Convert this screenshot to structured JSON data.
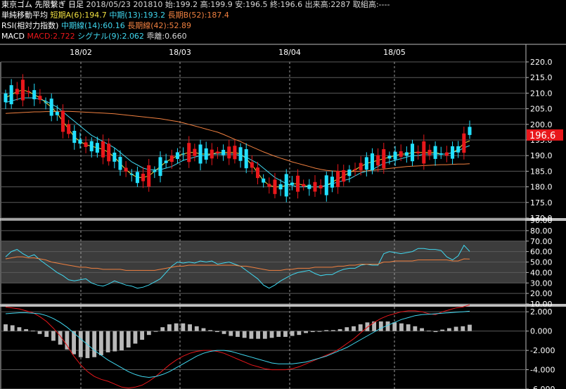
{
  "header": {
    "line1": {
      "title": "東京ゴム 先限繋ぎ 日足",
      "info": "2018/05/23 201810 始:199.2 高:199.9 安:196.5 終:196.6 出来高:2287 取組高:----"
    },
    "line2": {
      "name": "単純移動平均",
      "short": "短期A(6):194.7",
      "mid": "中期(13):193.2",
      "long": "長期B(52):187.4"
    },
    "line3": {
      "name": "RSI(相対力指数)",
      "mid": "中期線(14):60.16",
      "long": "長期線(42):52.89"
    },
    "line4": {
      "name": "MACD",
      "macd": "MACD:2.722",
      "signal": "シグナル(9):2.062",
      "diff": "乖離:0.660"
    }
  },
  "colors": {
    "up": "#e8171b",
    "down": "#22e0ff",
    "ma_short": "#f0e040",
    "ma_mid": "#40d8f0",
    "ma_long": "#f08040",
    "rsi_mid": "#40d8f0",
    "rsi_long": "#f08040",
    "macd": "#e8171b",
    "signal": "#40d8f0",
    "hist": "#b8b8b8",
    "price_tag": "#e8171b"
  },
  "current_price_label": "196.6",
  "chart_data": [
    {
      "type": "candlestick",
      "title": "",
      "x_labels": [
        "18/02",
        "18/03",
        "18/04",
        "18/05"
      ],
      "y_ticks": [
        "170.0",
        "175.0",
        "180.0",
        "185.0",
        "190.0",
        "195.0",
        "200.0",
        "205.0",
        "210.0",
        "215.0",
        "220.0"
      ],
      "ylim": [
        170,
        220
      ],
      "series": [
        {
          "name": "短期A(6)",
          "values": [
            208.5,
            209.5,
            210.5,
            211,
            210.5,
            209.5,
            208.5,
            207,
            205.5,
            203.5,
            201,
            198.5,
            196,
            194.5,
            193.5,
            193,
            192.5,
            192,
            191,
            189.5,
            187.5,
            185.5,
            184,
            183,
            183,
            183.5,
            185,
            186.5,
            188,
            189,
            190,
            190.5,
            191,
            191,
            190.5,
            190.5,
            190.5,
            191,
            191,
            191,
            191,
            190.5,
            189,
            187,
            184.5,
            182,
            180.5,
            180,
            180,
            180.5,
            181,
            181,
            180.5,
            180,
            180,
            180,
            180.5,
            181.5,
            182.5,
            183.5,
            184.5,
            185.5,
            186.5,
            187.5,
            188,
            188.5,
            189,
            189.5,
            190,
            190.5,
            190.5,
            191,
            191,
            191,
            191,
            191,
            190.5,
            190.5,
            191,
            192,
            194,
            194.7
          ]
        },
        {
          "name": "中期(13)",
          "values": [
            207,
            207.5,
            208,
            208.5,
            208.5,
            208.5,
            208,
            207.5,
            206.5,
            205.5,
            204,
            202.5,
            201,
            199.5,
            198,
            196.5,
            195.5,
            194.5,
            193.5,
            192.5,
            191,
            189.5,
            188,
            187,
            186,
            185.5,
            185.5,
            185.5,
            186,
            186.5,
            187.5,
            188.5,
            189,
            189.5,
            190,
            190,
            190.5,
            190.5,
            190.5,
            190.5,
            190.5,
            190,
            189.5,
            188.5,
            187.5,
            186,
            184.5,
            183,
            182,
            181,
            180.5,
            180,
            180,
            180,
            180,
            180,
            180.5,
            181,
            181.5,
            182,
            182.5,
            183.5,
            184.5,
            185,
            185.5,
            186.5,
            187.5,
            188,
            188.5,
            189,
            189.5,
            190,
            190,
            190.5,
            190.5,
            190.5,
            190.5,
            190.5,
            191,
            191.5,
            192.5,
            193.2
          ]
        },
        {
          "name": "長期B(52)",
          "values": [
            203.5,
            203.6,
            203.7,
            203.8,
            203.9,
            204,
            204,
            204.1,
            204.1,
            204.2,
            204.2,
            204.2,
            204.1,
            204,
            203.9,
            203.8,
            203.7,
            203.6,
            203.5,
            203.4,
            203.2,
            203,
            202.8,
            202.6,
            202.4,
            202.2,
            202,
            201.8,
            201.5,
            201.2,
            200.9,
            200.5,
            200,
            199.5,
            199,
            198.5,
            198,
            197.5,
            196.8,
            196,
            195.2,
            194.5,
            193.6,
            192.8,
            192,
            191.2,
            190.5,
            189.8,
            189.2,
            188.6,
            188,
            187.5,
            187,
            186.5,
            186,
            185.6,
            185.3,
            185.1,
            185,
            184.9,
            184.9,
            184.9,
            185,
            185.1,
            185.3,
            185.5,
            185.7,
            185.9,
            186.1,
            186.3,
            186.5,
            186.6,
            186.7,
            186.8,
            186.9,
            187,
            187.1,
            187.1,
            187.2,
            187.3,
            187.3,
            187.4
          ]
        }
      ]
    },
    {
      "type": "line",
      "title": "",
      "y_ticks": [
        "10.00",
        "20.00",
        "30.00",
        "40.00",
        "50.00",
        "60.00",
        "70.00",
        "80.00",
        "90.00"
      ],
      "ylim": [
        10,
        90
      ],
      "series": [
        {
          "name": "中期線(14)",
          "values": [
            55,
            60,
            62,
            58,
            55,
            57,
            52,
            48,
            44,
            40,
            37,
            33,
            32,
            33,
            34,
            30,
            28,
            27,
            29,
            32,
            30,
            28,
            27,
            25,
            26,
            28,
            31,
            34,
            40,
            46,
            50,
            49,
            50,
            49,
            51,
            50,
            51,
            48,
            49,
            50,
            48,
            46,
            42,
            38,
            34,
            28,
            25,
            28,
            32,
            35,
            38,
            40,
            41,
            42,
            39,
            37,
            38,
            38,
            41,
            43,
            44,
            44,
            47,
            48,
            47,
            47,
            58,
            60,
            59,
            58,
            59,
            60,
            63,
            63,
            62,
            62,
            61,
            55,
            52,
            56,
            66,
            60.16
          ]
        },
        {
          "name": "長期線(42)",
          "values": [
            53,
            54,
            55,
            55,
            54,
            54,
            53,
            52,
            50,
            49,
            48,
            47,
            46,
            45,
            45,
            44,
            44,
            43,
            43,
            43,
            43,
            42,
            42,
            42,
            42,
            42,
            42,
            43,
            44,
            45,
            46,
            46,
            47,
            47,
            47,
            47,
            47,
            47,
            47,
            47,
            47,
            46,
            46,
            45,
            44,
            43,
            42,
            42,
            42,
            43,
            43,
            44,
            44,
            44,
            45,
            45,
            45,
            45,
            46,
            46,
            47,
            47,
            48,
            48,
            48,
            48,
            50,
            50,
            51,
            51,
            51,
            51,
            52,
            52,
            52,
            52,
            52,
            52,
            51,
            51,
            53,
            52.89
          ]
        }
      ]
    },
    {
      "type": "bar",
      "title": "",
      "y_ticks": [
        "-6.000",
        "-4.000",
        "-2.000",
        "0.000",
        "2.000"
      ],
      "ylim": [
        -6,
        2.6
      ],
      "series": [
        {
          "name": "MACD",
          "values": [
            2.5,
            2.4,
            2.3,
            2.1,
            1.9,
            1.5,
            1,
            0.3,
            -0.5,
            -1.5,
            -2.6,
            -3.5,
            -4.2,
            -4.7,
            -5,
            -5.2,
            -5.5,
            -5.8,
            -5.9,
            -5.8,
            -5.6,
            -5.2,
            -4.7,
            -4.1,
            -3.5,
            -3,
            -2.6,
            -2.3,
            -2.1,
            -2,
            -2,
            -2.1,
            -2.3,
            -2.6,
            -2.9,
            -3.2,
            -3.5,
            -3.7,
            -3.9,
            -4,
            -4,
            -4,
            -3.9,
            -3.7,
            -3.4,
            -3.1,
            -2.8,
            -2.5,
            -2.2,
            -1.8,
            -1.3,
            -0.8,
            -0.2,
            0.4,
            0.9,
            1.3,
            1.6,
            1.8,
            2,
            2.1,
            2.1,
            2,
            1.8,
            1.7,
            2,
            2.2,
            2.4,
            2.5,
            2.722
          ]
        },
        {
          "name": "シグナル(9)",
          "values": [
            1.8,
            1.85,
            1.9,
            1.9,
            1.85,
            1.8,
            1.6,
            1.3,
            0.9,
            0.4,
            -0.2,
            -0.8,
            -1.4,
            -2,
            -2.5,
            -3,
            -3.4,
            -3.8,
            -4.2,
            -4.5,
            -4.7,
            -4.8,
            -4.7,
            -4.5,
            -4.2,
            -3.8,
            -3.4,
            -3,
            -2.6,
            -2.3,
            -2.1,
            -2,
            -2,
            -2.1,
            -2.3,
            -2.5,
            -2.7,
            -2.9,
            -3.1,
            -3.3,
            -3.4,
            -3.4,
            -3.4,
            -3.3,
            -3.2,
            -3,
            -2.8,
            -2.6,
            -2.3,
            -2,
            -1.7,
            -1.3,
            -0.9,
            -0.5,
            -0.1,
            0.3,
            0.6,
            0.9,
            1.2,
            1.4,
            1.6,
            1.7,
            1.75,
            1.8,
            1.85,
            1.9,
            1.95,
            2,
            2.062
          ]
        },
        {
          "name": "乖離",
          "values": [
            0.7,
            0.6,
            0.4,
            0.2,
            0.05,
            -0.3,
            -0.6,
            -1,
            -1.4,
            -1.9,
            -2.4,
            -2.7,
            -2.8,
            -2.7,
            -2.5,
            -2.2,
            -2.1,
            -2,
            -1.7,
            -1.3,
            -0.9,
            -0.4,
            0,
            0.4,
            0.7,
            0.8,
            0.8,
            0.7,
            0.5,
            0.3,
            0.1,
            -0.1,
            -0.3,
            -0.5,
            -0.6,
            -0.7,
            -0.8,
            -0.8,
            -0.8,
            -0.7,
            -0.6,
            -0.6,
            -0.5,
            -0.4,
            -0.2,
            -0.1,
            0,
            0.1,
            0.1,
            0.2,
            0.4,
            0.5,
            0.7,
            0.9,
            1,
            1,
            1,
            0.9,
            0.8,
            0.7,
            0.5,
            0.3,
            0.05,
            -0.1,
            0.15,
            0.3,
            0.45,
            0.5,
            0.66
          ]
        }
      ]
    }
  ]
}
